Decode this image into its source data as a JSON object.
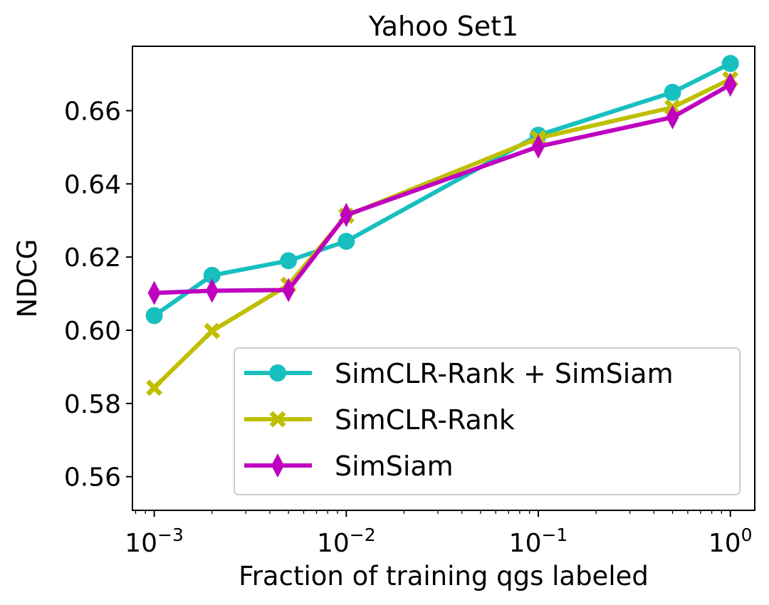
{
  "chart_data": {
    "type": "line",
    "title": "Yahoo Set1",
    "xlabel": "Fraction of training qgs labeled",
    "ylabel": "NDCG",
    "xscale": "log",
    "xlim": [
      0.00077,
      1.34
    ],
    "ylim": [
      0.5508,
      0.6776
    ],
    "grid": false,
    "legend_position": "lower-right",
    "x": [
      0.001,
      0.002,
      0.005,
      0.01,
      0.1,
      0.5,
      1.0
    ],
    "xticks": [
      {
        "value": 0.001,
        "base": "10",
        "exp": "−3"
      },
      {
        "value": 0.01,
        "base": "10",
        "exp": "−2"
      },
      {
        "value": 0.1,
        "base": "10",
        "exp": "−1"
      },
      {
        "value": 1.0,
        "base": "10",
        "exp": "0"
      }
    ],
    "yticks": [
      {
        "value": 0.56,
        "label": "0.56"
      },
      {
        "value": 0.58,
        "label": "0.58"
      },
      {
        "value": 0.6,
        "label": "0.60"
      },
      {
        "value": 0.62,
        "label": "0.62"
      },
      {
        "value": 0.64,
        "label": "0.64"
      },
      {
        "value": 0.66,
        "label": "0.66"
      }
    ],
    "series": [
      {
        "name": "SimCLR-Rank + SimSiam",
        "color": "#17bfbf",
        "marker": "circle",
        "values": [
          0.604,
          0.615,
          0.619,
          0.6243,
          0.6533,
          0.665,
          0.6729
        ]
      },
      {
        "name": "SimCLR-Rank",
        "color": "#bfbf00",
        "marker": "x-filled",
        "values": [
          0.5843,
          0.5998,
          0.6124,
          0.6313,
          0.6525,
          0.6609,
          0.6686
        ]
      },
      {
        "name": "SimSiam",
        "color": "#bf00bf",
        "marker": "thin-diamond",
        "values": [
          0.6102,
          0.6108,
          0.611,
          0.6315,
          0.6502,
          0.6582,
          0.6671
        ]
      }
    ]
  }
}
